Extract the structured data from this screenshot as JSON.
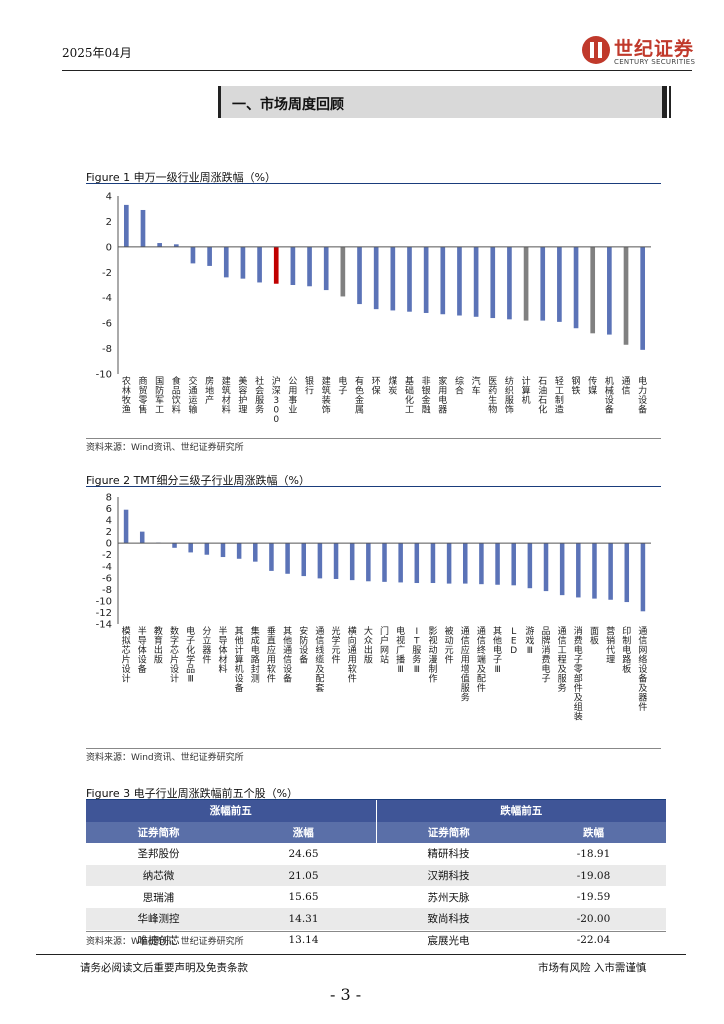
{
  "header": {
    "date": "2025年04月",
    "logo_cn": "世纪证券",
    "logo_en": "CENTURY SECURITIES"
  },
  "section_title": "一、市场周度回顾",
  "colors": {
    "blue": "#5b73b7",
    "red": "#c00000",
    "gray": "#808080",
    "axis": "#555555",
    "table_header": "#3f5597"
  },
  "figure1": {
    "title": "Figure 1  申万一级行业周涨跌幅（%）",
    "source": "资料来源：Wind资讯、世纪证券研究所",
    "chart_data": {
      "type": "bar",
      "ylim": [
        -10,
        4
      ],
      "yticks": [
        4,
        2,
        0,
        -2,
        -4,
        -6,
        -8,
        -10
      ],
      "categories": [
        "农林牧渔",
        "商贸零售",
        "国防军工",
        "食品饮料",
        "交通运输",
        "房地产",
        "建筑材料",
        "美容护理",
        "社会服务",
        "沪深300",
        "公用事业",
        "银行",
        "建筑装饰",
        "电子",
        "有色金属",
        "环保",
        "煤炭",
        "基础化工",
        "非银金融",
        "家用电器",
        "综合",
        "汽车",
        "医药生物",
        "纺织服饰",
        "计算机",
        "石油石化",
        "轻工制造",
        "钢铁",
        "传媒",
        "机械设备",
        "通信",
        "电力设备"
      ],
      "values": [
        3.3,
        2.9,
        0.3,
        0.2,
        -1.3,
        -1.5,
        -2.4,
        -2.5,
        -2.8,
        -2.9,
        -3.0,
        -3.1,
        -3.4,
        -3.9,
        -4.5,
        -4.9,
        -5.0,
        -5.1,
        -5.2,
        -5.3,
        -5.4,
        -5.5,
        -5.6,
        -5.7,
        -5.8,
        -5.8,
        -5.9,
        -6.4,
        -6.8,
        -6.9,
        -7.7,
        -8.1
      ],
      "bar_colors": [
        "blue",
        "blue",
        "blue",
        "blue",
        "blue",
        "blue",
        "blue",
        "blue",
        "blue",
        "red",
        "blue",
        "blue",
        "blue",
        "gray",
        "blue",
        "blue",
        "blue",
        "blue",
        "blue",
        "blue",
        "blue",
        "blue",
        "blue",
        "blue",
        "gray",
        "blue",
        "blue",
        "blue",
        "gray",
        "blue",
        "gray",
        "blue"
      ]
    }
  },
  "figure2": {
    "title": "Figure 2 TMT细分三级子行业周涨跌幅（%）",
    "source": "资料来源：Wind资讯、世纪证券研究所",
    "chart_data": {
      "type": "bar",
      "ylim": [
        -14,
        8
      ],
      "yticks": [
        8,
        6,
        4,
        2,
        0,
        -2,
        -4,
        -6,
        -8,
        -10,
        -12,
        -14
      ],
      "categories": [
        "模拟芯片设计",
        "半导体设备",
        "教育出版",
        "数字芯片设计",
        "电子化学品Ⅲ",
        "分立器件",
        "半导体材料",
        "其他计算机设备",
        "集成电路封测",
        "垂直应用软件",
        "其他通信设备",
        "安防设备",
        "通信线缆及配套",
        "光学元件",
        "横向通用软件",
        "大众出版",
        "门户网站",
        "电视广播Ⅲ",
        "IT服务Ⅲ",
        "影视动漫制作",
        "被动元件",
        "通信应用增值服务",
        "通信终端及配件",
        "其他电子Ⅲ",
        "LED",
        "游戏Ⅲ",
        "品牌消费电子",
        "通信工程及服务",
        "消费电子零部件及组装",
        "面板",
        "营销代理",
        "印制电路板",
        "通信网络设备及器件"
      ],
      "values": [
        5.8,
        2.0,
        0.1,
        -0.8,
        -1.6,
        -2.0,
        -2.4,
        -2.7,
        -3.2,
        -4.8,
        -5.3,
        -5.7,
        -6.1,
        -6.2,
        -6.4,
        -6.6,
        -6.7,
        -6.8,
        -6.9,
        -6.9,
        -7.0,
        -7.0,
        -7.1,
        -7.2,
        -7.3,
        -7.8,
        -8.3,
        -9.0,
        -9.4,
        -9.6,
        -9.8,
        -10.2,
        -11.8
      ]
    }
  },
  "figure3": {
    "title": "Figure 3  电子行业周涨跌幅前五个股（%）",
    "source": "资料来源：Wind资讯、世纪证券研究所",
    "gainers_header": "涨幅前五",
    "losers_header": "跌幅前五",
    "col_name": "证券简称",
    "col_gain": "涨幅",
    "col_loss": "跌幅",
    "rows": [
      {
        "g_name": "圣邦股份",
        "g_val": "24.65",
        "l_name": "精研科技",
        "l_val": "-18.91"
      },
      {
        "g_name": "纳芯微",
        "g_val": "21.05",
        "l_name": "汉朔科技",
        "l_val": "-19.08"
      },
      {
        "g_name": "思瑞浦",
        "g_val": "15.65",
        "l_name": "苏州天脉",
        "l_val": "-19.59"
      },
      {
        "g_name": "华峰测控",
        "g_val": "14.31",
        "l_name": "致尚科技",
        "l_val": "-20.00"
      },
      {
        "g_name": "唯捷创芯",
        "g_val": "13.14",
        "l_name": "宸展光电",
        "l_val": "-22.04"
      }
    ]
  },
  "footer": {
    "left": "请务必阅读文后重要声明及免责条款",
    "right": "市场有风险  入市需谨慎",
    "page": "- 3 -"
  }
}
